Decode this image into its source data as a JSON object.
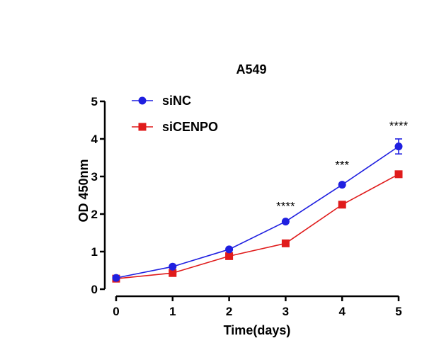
{
  "chart_data": {
    "type": "line",
    "title": "A549",
    "xlabel": "Time(days)",
    "ylabel": "OD 450nm",
    "x": [
      0,
      1,
      2,
      3,
      4,
      5
    ],
    "xlim": [
      0,
      5
    ],
    "ylim": [
      0,
      5
    ],
    "xticks": [
      "0",
      "1",
      "2",
      "3",
      "4",
      "5"
    ],
    "yticks": [
      "0",
      "1",
      "2",
      "3",
      "4",
      "5"
    ],
    "grid": false,
    "legend_position": "top-left",
    "series": [
      {
        "name": "siNC",
        "values": [
          0.3,
          0.6,
          1.06,
          1.8,
          2.78,
          3.8
        ],
        "error": [
          0,
          0,
          0,
          0,
          0,
          0.2
        ],
        "color": "#1F1FE0",
        "marker": "circle"
      },
      {
        "name": "siCENPO",
        "values": [
          0.28,
          0.43,
          0.88,
          1.22,
          2.25,
          3.06
        ],
        "error": [
          0,
          0,
          0,
          0,
          0,
          0
        ],
        "color": "#E01B1B",
        "marker": "square"
      }
    ],
    "annotations": [
      {
        "x": 3,
        "y": 2.1,
        "text": "****"
      },
      {
        "x": 4,
        "y": 3.2,
        "text": "***"
      },
      {
        "x": 5,
        "y": 4.25,
        "text": "****"
      }
    ]
  }
}
